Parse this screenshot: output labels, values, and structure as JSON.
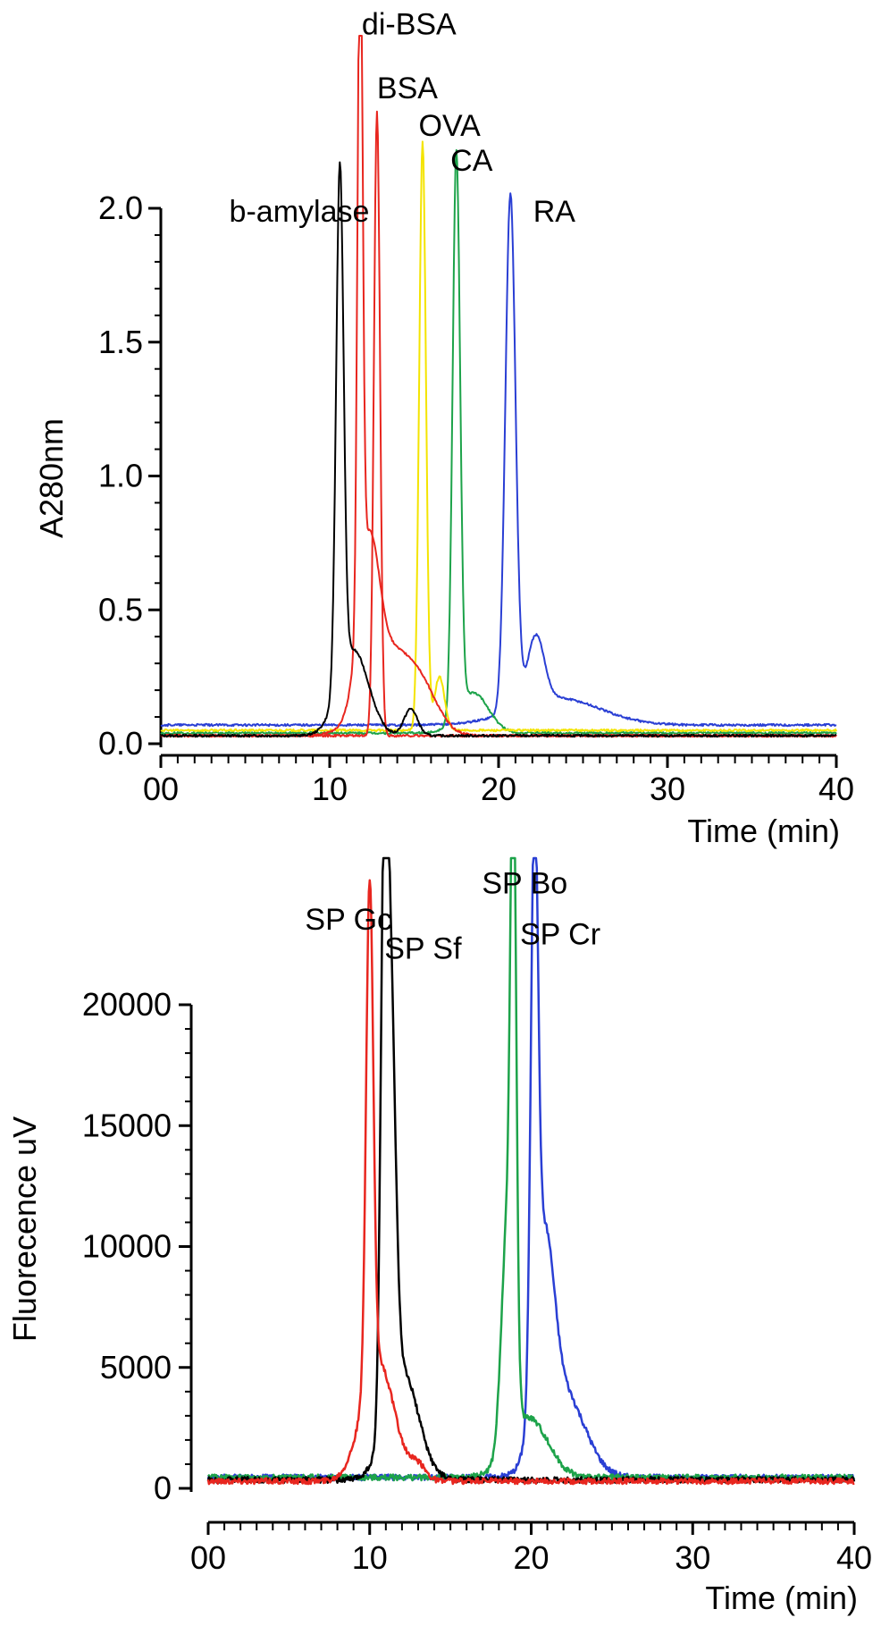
{
  "chart_data": [
    {
      "type": "line",
      "title": "",
      "xlabel": "Time (min)",
      "ylabel": "A280nm",
      "xlim": [
        0,
        40
      ],
      "ylim": [
        0,
        2.0
      ],
      "x_ticks": [
        "00",
        "10",
        "20",
        "30",
        "40"
      ],
      "y_ticks": [
        "0.0",
        "0.5",
        "1.0",
        "1.5",
        "2.0"
      ],
      "grid": false,
      "colors": {
        "black": "#000000",
        "red": "#e8261f",
        "yellow": "#f4e400",
        "green": "#1da34a",
        "blue": "#2a3fd4"
      },
      "series": [
        {
          "name": "b-amylase",
          "color": "#000000",
          "baseline": 0.03,
          "peaks": [
            {
              "x": 10.6,
              "y": 1.93,
              "w": 0.22
            },
            {
              "x": 11.4,
              "y": 0.32,
              "w": 0.9
            },
            {
              "x": 14.8,
              "y": 0.1,
              "w": 0.4
            }
          ],
          "label_at": [
            10.6,
            1.93
          ]
        },
        {
          "name": "di-BSA",
          "color": "#e8261f",
          "baseline": 0.03,
          "peaks": [
            {
              "x": 11.8,
              "y": 2.57,
              "w": 0.15
            },
            {
              "x": 12.3,
              "y": 0.55,
              "w": 0.6
            },
            {
              "x": 13.5,
              "y": 0.3,
              "w": 1.4
            },
            {
              "x": 15.5,
              "y": 0.12,
              "w": 1.0
            }
          ],
          "label_at": [
            11.8,
            2.57
          ]
        },
        {
          "name": "BSA",
          "color": "#e8261f",
          "baseline": 0.03,
          "peaks": [
            {
              "x": 12.8,
              "y": 2.33,
              "w": 0.18
            }
          ],
          "label_at": [
            12.8,
            2.33
          ]
        },
        {
          "name": "OVA",
          "color": "#f4e400",
          "baseline": 0.05,
          "peaks": [
            {
              "x": 15.5,
              "y": 2.2,
              "w": 0.2
            },
            {
              "x": 16.5,
              "y": 0.2,
              "w": 0.3
            }
          ],
          "label_at": [
            15.5,
            2.2
          ]
        },
        {
          "name": "CA",
          "color": "#1da34a",
          "baseline": 0.04,
          "peaks": [
            {
              "x": 17.5,
              "y": 2.1,
              "w": 0.22
            },
            {
              "x": 18.5,
              "y": 0.15,
              "w": 0.9
            }
          ],
          "label_at": [
            17.5,
            2.1
          ]
        },
        {
          "name": "RA",
          "color": "#2a3fd4",
          "baseline": 0.07,
          "peaks": [
            {
              "x": 20.7,
              "y": 1.93,
              "w": 0.3
            },
            {
              "x": 22.2,
              "y": 0.25,
              "w": 0.5
            },
            {
              "x": 23.5,
              "y": 0.1,
              "w": 2.5
            }
          ],
          "label_at": [
            20.7,
            1.93
          ]
        }
      ],
      "labels": [
        {
          "text": "b-amylase",
          "x": 8.2,
          "y": 1.95
        },
        {
          "text": "di-BSA",
          "x": 14.7,
          "y": 2.65
        },
        {
          "text": "BSA",
          "x": 14.6,
          "y": 2.41
        },
        {
          "text": "OVA",
          "x": 17.1,
          "y": 2.27
        },
        {
          "text": "CA",
          "x": 18.4,
          "y": 2.14
        },
        {
          "text": "RA",
          "x": 23.3,
          "y": 1.95
        }
      ]
    },
    {
      "type": "line",
      "title": "",
      "xlabel": "Time (min)",
      "ylabel": "Fluorecence uV",
      "xlim": [
        0,
        40
      ],
      "ylim": [
        0,
        20000
      ],
      "x_ticks": [
        "00",
        "10",
        "20",
        "30",
        "40"
      ],
      "y_ticks": [
        "0",
        "5000",
        "10000",
        "15000",
        "20000"
      ],
      "grid": false,
      "series": [
        {
          "name": "SP Gc",
          "color": "#e8261f",
          "baseline": 300,
          "peaks": [
            {
              "x": 10.0,
              "y": 20500,
              "w": 0.22
            },
            {
              "x": 10.5,
              "y": 5000,
              "w": 1.0
            },
            {
              "x": 13.0,
              "y": 600,
              "w": 0.5
            }
          ],
          "label_at": [
            10.0,
            22800
          ]
        },
        {
          "name": "SP Sf",
          "color": "#000000",
          "baseline": 350,
          "peaks": [
            {
              "x": 10.9,
              "y": 21000,
              "w": 0.22
            },
            {
              "x": 11.3,
              "y": 16000,
              "w": 0.3
            },
            {
              "x": 12.0,
              "y": 4500,
              "w": 1.0
            }
          ],
          "label_at": [
            10.9,
            21600
          ]
        },
        {
          "name": "SP Bo",
          "color": "#1da34a",
          "baseline": 450,
          "peaks": [
            {
              "x": 18.9,
              "y": 24000,
              "w": 0.18
            },
            {
              "x": 18.5,
              "y": 9000,
              "w": 0.35
            },
            {
              "x": 19.8,
              "y": 2500,
              "w": 1.2
            }
          ],
          "label_at": [
            18.9,
            24000
          ]
        },
        {
          "name": "SP Cr",
          "color": "#2a3fd4",
          "baseline": 450,
          "peaks": [
            {
              "x": 20.2,
              "y": 22300,
              "w": 0.22
            },
            {
              "x": 20.8,
              "y": 8000,
              "w": 0.6
            },
            {
              "x": 22.0,
              "y": 3500,
              "w": 1.3
            }
          ],
          "label_at": [
            20.2,
            22300
          ]
        }
      ],
      "labels": [
        {
          "text": "SP Gc",
          "x": 8.7,
          "y": 23100
        },
        {
          "text": "SP Sf",
          "x": 13.3,
          "y": 21900
        },
        {
          "text": "SP Bo",
          "x": 19.6,
          "y": 24600
        },
        {
          "text": "SP Cr",
          "x": 21.8,
          "y": 22500
        }
      ]
    }
  ]
}
